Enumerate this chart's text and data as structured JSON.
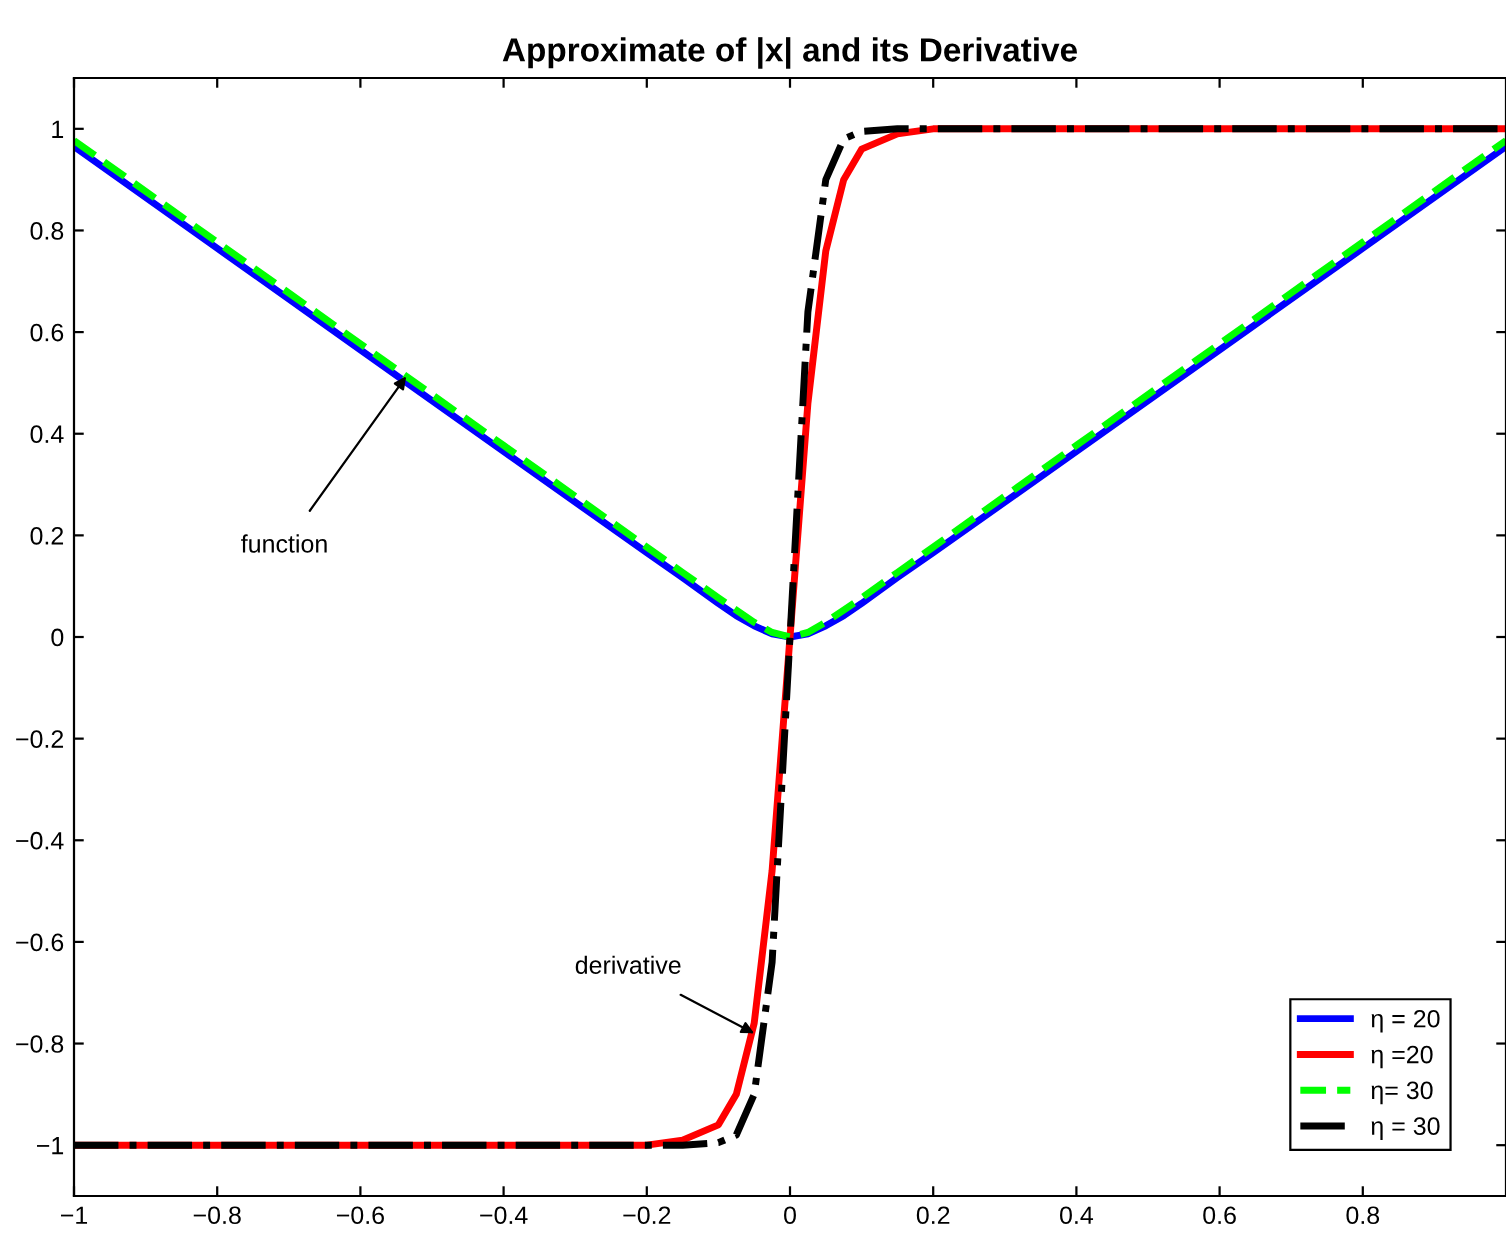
{
  "chart_data": {
    "type": "line",
    "title": "Approximate of |x| and its Derivative",
    "xlim": [
      -1,
      1
    ],
    "ylim": [
      -1.1,
      1.1
    ],
    "xticks": [
      {
        "value": -1,
        "label": "−1"
      },
      {
        "value": -0.8,
        "label": "−0.8"
      },
      {
        "value": -0.6,
        "label": "−0.6"
      },
      {
        "value": -0.4,
        "label": "−0.4"
      },
      {
        "value": -0.2,
        "label": "−0.2"
      },
      0,
      0.2,
      0.4,
      0.6,
      0.8
    ],
    "yticks": [
      {
        "value": -1,
        "label": "−1"
      },
      {
        "value": -0.8,
        "label": "−0.8"
      },
      {
        "value": -0.6,
        "label": "−0.6"
      },
      {
        "value": -0.4,
        "label": "−0.4"
      },
      {
        "value": -0.2,
        "label": "−0.2"
      },
      0,
      0.2,
      0.4,
      0.6,
      0.8,
      1
    ],
    "grid": false,
    "legend": "bottom right",
    "series": [
      {
        "name": "η = 20",
        "color": "#0000ff",
        "line_style": "solid",
        "x": [
          -1,
          -0.8,
          -0.6,
          -0.4,
          -0.2,
          -0.15,
          -0.1,
          -0.075,
          -0.05,
          -0.025,
          0,
          0.025,
          0.05,
          0.075,
          0.1,
          0.15,
          0.2,
          0.4,
          0.6,
          0.8,
          1
        ],
        "values": [
          0.965,
          0.765,
          0.565,
          0.365,
          0.166,
          0.117,
          0.066,
          0.042,
          0.022,
          0.006,
          0,
          0.006,
          0.022,
          0.042,
          0.066,
          0.117,
          0.166,
          0.365,
          0.565,
          0.765,
          0.965
        ]
      },
      {
        "name": "η =20",
        "color": "#ff0000",
        "line_style": "solid",
        "x": [
          -1,
          -0.4,
          -0.2,
          -0.15,
          -0.1,
          -0.075,
          -0.05,
          -0.025,
          0,
          0.025,
          0.05,
          0.075,
          0.1,
          0.15,
          0.2,
          0.4,
          1
        ],
        "values": [
          -1,
          -1,
          -1,
          -0.99,
          -0.96,
          -0.9,
          -0.76,
          -0.46,
          0,
          0.46,
          0.76,
          0.9,
          0.96,
          0.99,
          1,
          1,
          1
        ]
      },
      {
        "name": "η= 30",
        "color": "#00ff00",
        "line_style": "dashed",
        "x": [
          -1,
          -0.8,
          -0.6,
          -0.4,
          -0.2,
          -0.15,
          -0.1,
          -0.075,
          -0.05,
          -0.025,
          0,
          0.025,
          0.05,
          0.075,
          0.1,
          0.15,
          0.2,
          0.4,
          0.6,
          0.8,
          1
        ],
        "values": [
          0.977,
          0.777,
          0.577,
          0.377,
          0.177,
          0.127,
          0.077,
          0.053,
          0.029,
          0.009,
          0,
          0.009,
          0.029,
          0.053,
          0.077,
          0.127,
          0.177,
          0.377,
          0.577,
          0.777,
          0.977
        ]
      },
      {
        "name": "η = 30",
        "color": "#000000",
        "line_style": "dashdot",
        "x": [
          -1,
          -0.4,
          -0.2,
          -0.15,
          -0.1,
          -0.075,
          -0.05,
          -0.025,
          0,
          0.025,
          0.05,
          0.075,
          0.1,
          0.15,
          0.2,
          0.4,
          1
        ],
        "values": [
          -1,
          -1,
          -1,
          -1,
          -0.995,
          -0.98,
          -0.9,
          -0.64,
          0,
          0.64,
          0.9,
          0.98,
          0.995,
          1,
          1,
          1,
          1
        ]
      }
    ],
    "annotations": [
      {
        "text": "function",
        "x": -0.536,
        "y": 0.513
      },
      {
        "text": "derivative",
        "x": -0.05,
        "y": -0.78
      }
    ]
  }
}
